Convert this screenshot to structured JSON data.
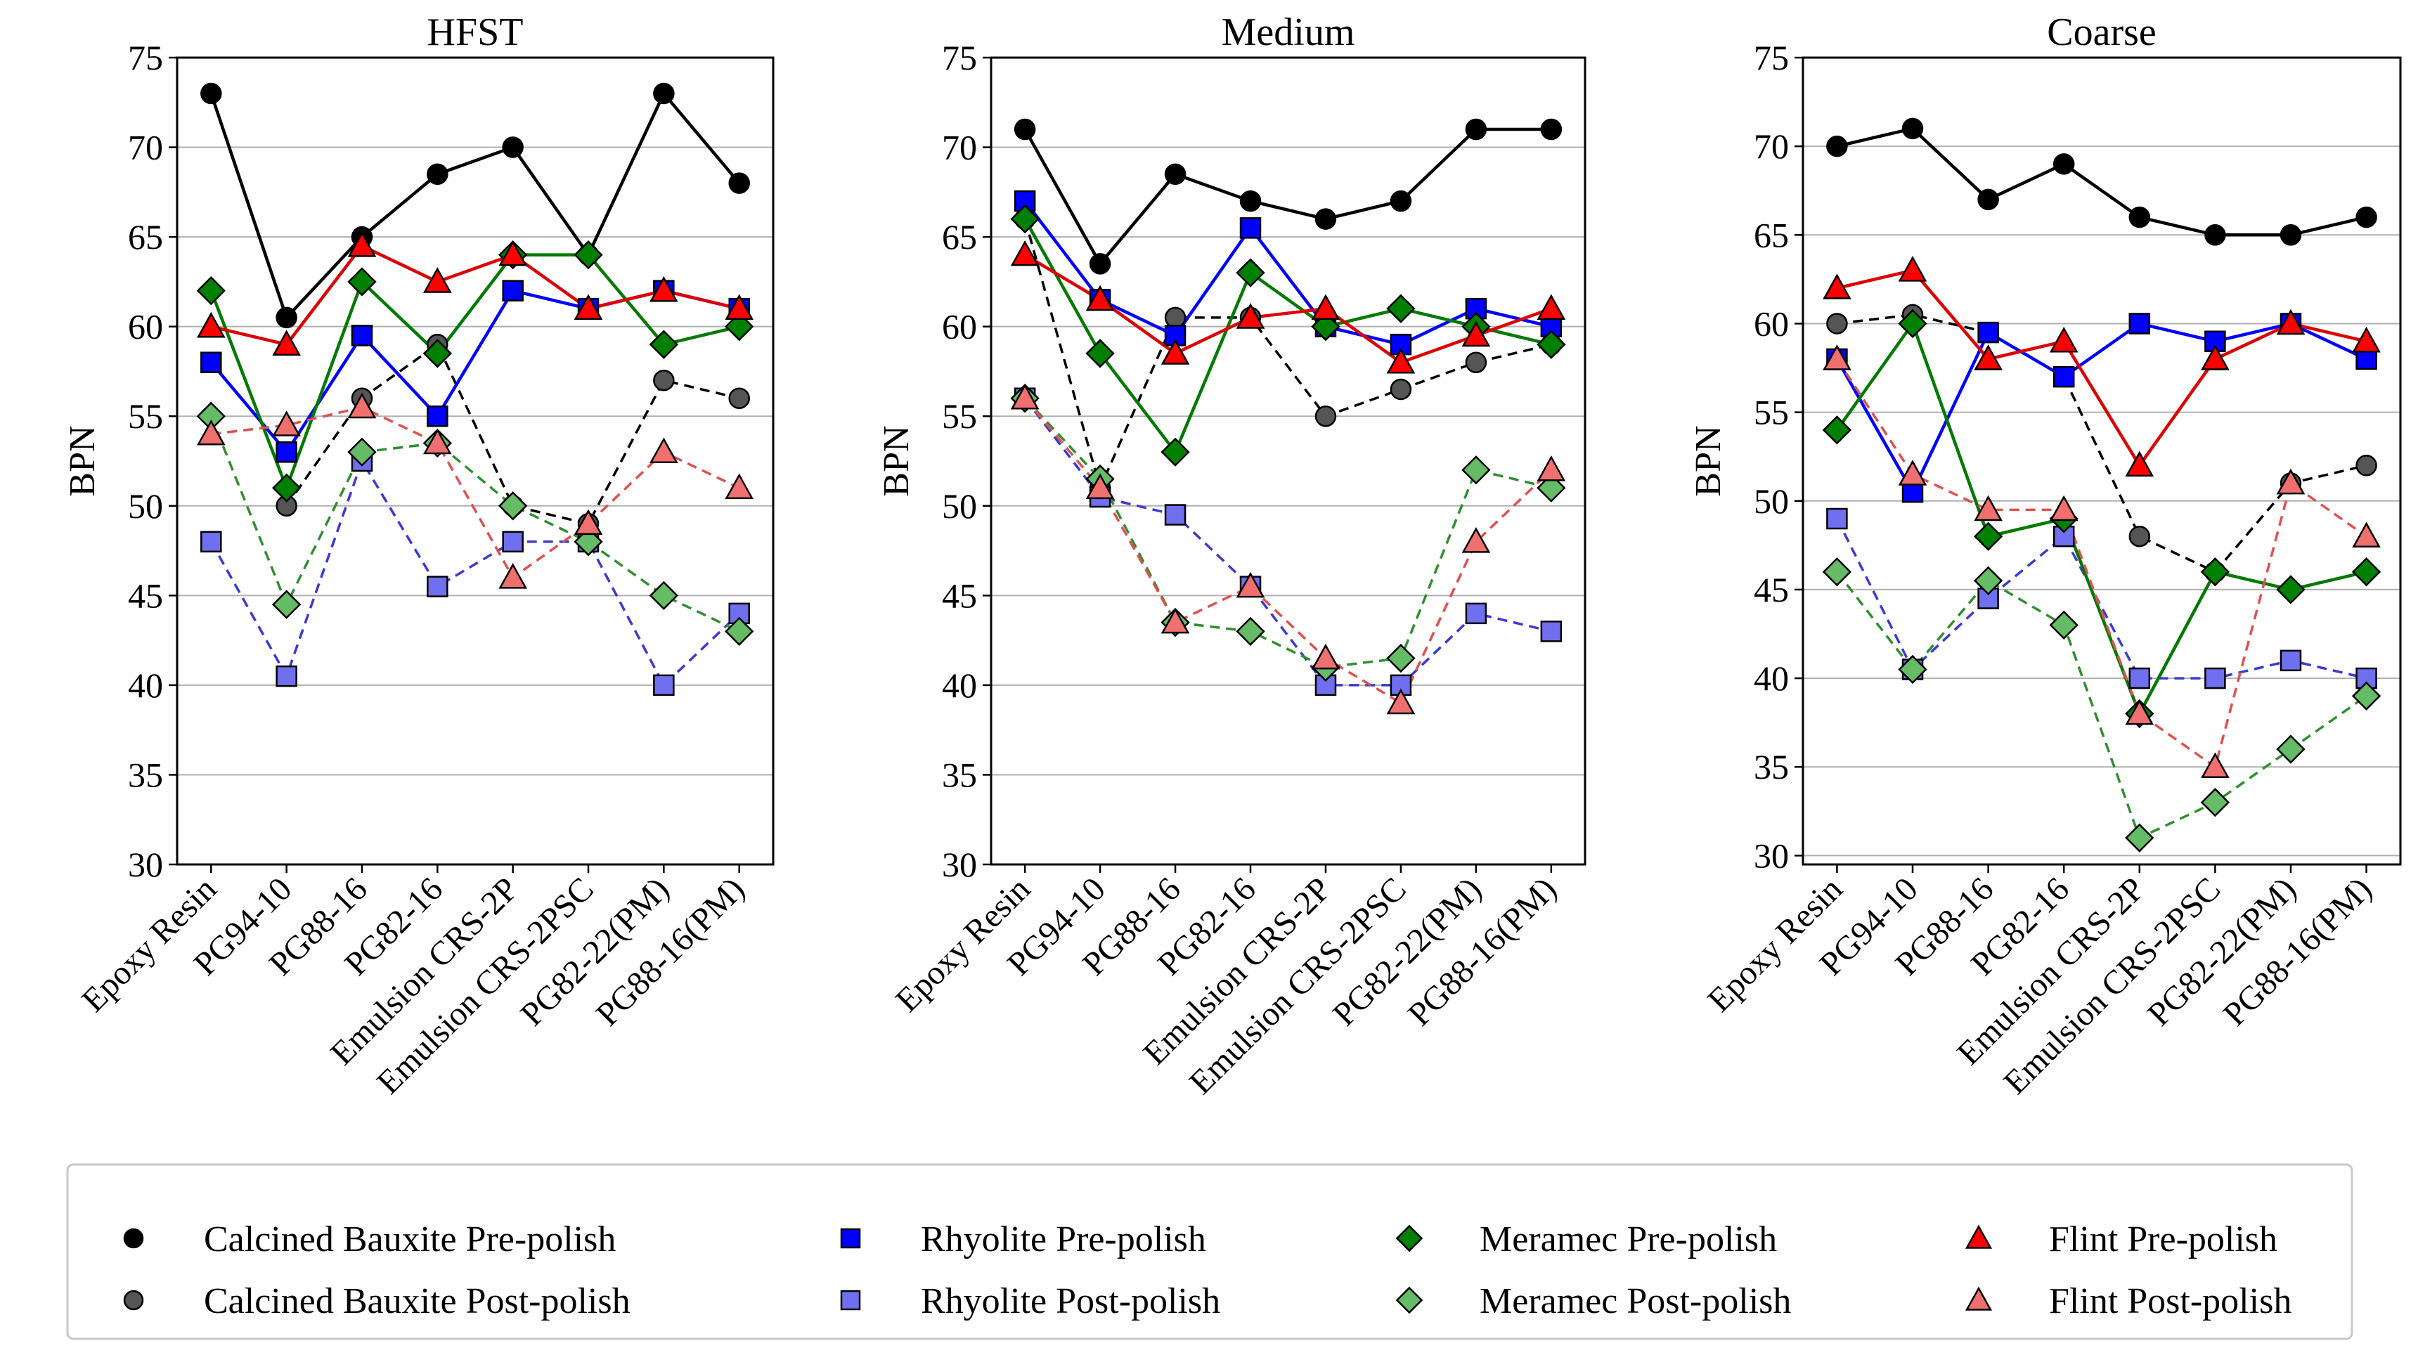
{
  "chart_data": [
    {
      "type": "line",
      "title": "HFST",
      "xlabel": "",
      "ylabel": "BPN",
      "ylim": [
        30,
        75
      ],
      "yticks": [
        30,
        35,
        40,
        45,
        50,
        55,
        60,
        65,
        70,
        75
      ],
      "grid": "horizontal",
      "categories": [
        "Epoxy Resin",
        "PG94-10",
        "PG88-16",
        "PG82-16",
        "Emulsion CRS-2P",
        "Emulsion CRS-2PSC",
        "PG82-22(PM)",
        "PG88-16(PM)"
      ],
      "series": [
        {
          "name": "Calcined Bauxite Pre-polish",
          "values": [
            73,
            60.5,
            65,
            68.5,
            70,
            64,
            73,
            68
          ]
        },
        {
          "name": "Calcined Bauxite Post-polish",
          "values": [
            null,
            50,
            56,
            59,
            50,
            49,
            57,
            56
          ]
        },
        {
          "name": "Rhyolite Pre-polish",
          "values": [
            58,
            53,
            59.5,
            55,
            62,
            61,
            62,
            61
          ]
        },
        {
          "name": "Rhyolite Post-polish",
          "values": [
            48,
            40.5,
            52.5,
            45.5,
            48,
            48,
            40,
            44
          ]
        },
        {
          "name": "Meramec Pre-polish",
          "values": [
            62,
            51,
            62.5,
            58.5,
            64,
            64,
            59,
            60
          ]
        },
        {
          "name": "Meramec Post-polish",
          "values": [
            55,
            44.5,
            53,
            53.5,
            50,
            48,
            45,
            43
          ]
        },
        {
          "name": "Flint Pre-polish",
          "values": [
            60,
            59,
            64.5,
            62.5,
            64,
            61,
            62,
            61
          ]
        },
        {
          "name": "Flint Post-polish",
          "values": [
            54,
            54.5,
            55.5,
            53.5,
            46,
            49,
            53,
            51
          ]
        }
      ]
    },
    {
      "type": "line",
      "title": "Medium",
      "xlabel": "",
      "ylabel": "BPN",
      "ylim": [
        30,
        75
      ],
      "yticks": [
        30,
        35,
        40,
        45,
        50,
        55,
        60,
        65,
        70,
        75
      ],
      "grid": "horizontal",
      "categories": [
        "Epoxy Resin",
        "PG94-10",
        "PG88-16",
        "PG82-16",
        "Emulsion CRS-2P",
        "Emulsion CRS-2PSC",
        "PG82-22(PM)",
        "PG88-16(PM)"
      ],
      "series": [
        {
          "name": "Calcined Bauxite Pre-polish",
          "values": [
            71,
            63.5,
            68.5,
            67,
            66,
            67,
            71,
            71
          ]
        },
        {
          "name": "Calcined Bauxite Post-polish",
          "values": [
            66,
            51,
            60.5,
            60.5,
            55,
            56.5,
            58,
            59
          ]
        },
        {
          "name": "Rhyolite Pre-polish",
          "values": [
            67,
            61.5,
            59.5,
            65.5,
            60,
            59,
            61,
            60
          ]
        },
        {
          "name": "Rhyolite Post-polish",
          "values": [
            56,
            50.5,
            49.5,
            45.5,
            40,
            40,
            44,
            43
          ]
        },
        {
          "name": "Meramec Pre-polish",
          "values": [
            66,
            58.5,
            53,
            63,
            60,
            61,
            60,
            59
          ]
        },
        {
          "name": "Meramec Post-polish",
          "values": [
            56,
            51.5,
            43.5,
            43,
            41,
            41.5,
            52,
            51
          ]
        },
        {
          "name": "Flint Pre-polish",
          "values": [
            64,
            61.5,
            58.5,
            60.5,
            61,
            58,
            59.5,
            61
          ]
        },
        {
          "name": "Flint Post-polish",
          "values": [
            56,
            51,
            43.5,
            45.5,
            41.5,
            39,
            48,
            52
          ]
        }
      ]
    },
    {
      "type": "line",
      "title": "Coarse",
      "xlabel": "",
      "ylabel": "BPN",
      "ylim": [
        29.5,
        75
      ],
      "yticks": [
        30,
        35,
        40,
        45,
        50,
        55,
        60,
        65,
        70,
        75
      ],
      "grid": "horizontal",
      "categories": [
        "Epoxy Resin",
        "PG94-10",
        "PG88-16",
        "PG82-16",
        "Emulsion CRS-2P",
        "Emulsion CRS-2PSC",
        "PG82-22(PM)",
        "PG88-16(PM)"
      ],
      "series": [
        {
          "name": "Calcined Bauxite Pre-polish",
          "values": [
            70,
            71,
            67,
            69,
            66,
            65,
            65,
            66
          ]
        },
        {
          "name": "Calcined Bauxite Post-polish",
          "values": [
            60,
            60.5,
            59.5,
            57,
            48,
            46,
            51,
            52
          ]
        },
        {
          "name": "Rhyolite Pre-polish",
          "values": [
            58,
            50.5,
            59.5,
            57,
            60,
            59,
            60,
            58
          ]
        },
        {
          "name": "Rhyolite Post-polish",
          "values": [
            49,
            40.5,
            44.5,
            48,
            40,
            40,
            41,
            40
          ]
        },
        {
          "name": "Meramec Pre-polish",
          "values": [
            54,
            60,
            48,
            49,
            38,
            46,
            45,
            46
          ]
        },
        {
          "name": "Meramec Post-polish",
          "values": [
            46,
            40.5,
            45.5,
            43,
            31,
            33,
            36,
            39
          ]
        },
        {
          "name": "Flint Pre-polish",
          "values": [
            62,
            63,
            58,
            59,
            52,
            58,
            60,
            59
          ]
        },
        {
          "name": "Flint Post-polish",
          "values": [
            58,
            51.5,
            49.5,
            49.5,
            38,
            35,
            51,
            48
          ]
        }
      ]
    }
  ],
  "series_styles": [
    {
      "name": "Calcined Bauxite Pre-polish",
      "line_color": "#000000",
      "marker_fill": "#000000",
      "marker": "circle",
      "dashed": false
    },
    {
      "name": "Calcined Bauxite Post-polish",
      "line_color": "#000000",
      "marker_fill": "#555555",
      "marker": "circle",
      "dashed": true
    },
    {
      "name": "Rhyolite Pre-polish",
      "line_color": "#0000ff",
      "marker_fill": "#0000ff",
      "marker": "square",
      "dashed": false
    },
    {
      "name": "Rhyolite Post-polish",
      "line_color": "#3a3ad6",
      "marker_fill": "#6f6ff0",
      "marker": "square",
      "dashed": true
    },
    {
      "name": "Meramec Pre-polish",
      "line_color": "#007a00",
      "marker_fill": "#008000",
      "marker": "diamond",
      "dashed": false
    },
    {
      "name": "Meramec Post-polish",
      "line_color": "#2f8f2f",
      "marker_fill": "#66bb66",
      "marker": "diamond",
      "dashed": true
    },
    {
      "name": "Flint Pre-polish",
      "line_color": "#dd0000",
      "marker_fill": "#ff0000",
      "marker": "triangle",
      "dashed": false
    },
    {
      "name": "Flint Post-polish",
      "line_color": "#e05050",
      "marker_fill": "#f07070",
      "marker": "triangle",
      "dashed": true
    }
  ],
  "legend": {
    "placement": "bottom",
    "entries": [
      "Calcined Bauxite Pre-polish",
      "Calcined Bauxite Post-polish",
      "Rhyolite Pre-polish",
      "Rhyolite Post-polish",
      "Meramec Pre-polish",
      "Meramec Post-polish",
      "Flint Pre-polish",
      "Flint Post-polish"
    ]
  }
}
